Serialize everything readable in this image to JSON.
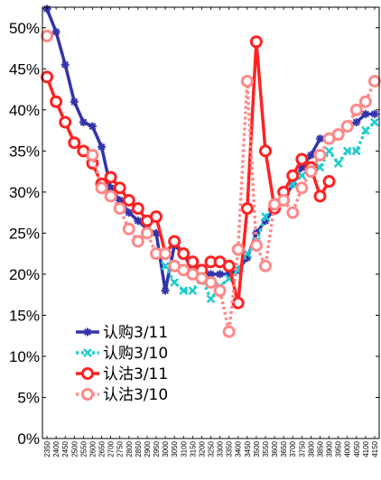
{
  "chart_data": {
    "type": "line",
    "title": "",
    "xlabel": "",
    "ylabel": "",
    "ylim": [
      0,
      0.525
    ],
    "y_ticks": [
      "0%",
      "5%",
      "10%",
      "15%",
      "20%",
      "25%",
      "30%",
      "35%",
      "40%",
      "45%",
      "50%"
    ],
    "legend_position": "lower-left",
    "grid": false,
    "x": [
      "2350",
      "2400",
      "2450",
      "2500",
      "2550",
      "2600",
      "2650",
      "2700",
      "2750",
      "2800",
      "2850",
      "2900",
      "2950",
      "3000",
      "3050",
      "3100",
      "3150",
      "3200",
      "3250",
      "3300",
      "3350",
      "3400",
      "3450",
      "3500",
      "3550",
      "3600",
      "3650",
      "3700",
      "3750",
      "3800",
      "3850",
      "3900",
      "3950",
      "4000",
      "4050",
      "4100",
      "4150"
    ],
    "series": [
      {
        "name": "认购3/11",
        "color": "#3333aa",
        "style": "solid",
        "marker": "star",
        "values": [
          0.523,
          0.495,
          0.455,
          0.41,
          0.385,
          0.38,
          0.355,
          0.305,
          0.29,
          0.275,
          0.265,
          0.255,
          0.25,
          0.18,
          0.235,
          0.225,
          0.205,
          0.2,
          0.2,
          0.2,
          0.2,
          0.205,
          0.22,
          0.25,
          0.265,
          0.28,
          0.29,
          0.31,
          0.33,
          0.345,
          0.365,
          0.365,
          0.37,
          0.38,
          0.385,
          0.395,
          0.395
        ]
      },
      {
        "name": "认购3/10",
        "color": "#22cccc",
        "style": "dotted",
        "marker": "x",
        "values": [
          null,
          null,
          null,
          null,
          null,
          null,
          null,
          null,
          null,
          null,
          null,
          null,
          null,
          0.21,
          0.19,
          0.18,
          0.18,
          0.195,
          0.17,
          0.185,
          0.195,
          0.205,
          0.225,
          0.24,
          0.27,
          0.285,
          0.295,
          0.31,
          0.32,
          0.325,
          0.33,
          0.35,
          0.335,
          0.35,
          0.35,
          0.375,
          0.385
        ]
      },
      {
        "name": "认沽3/11",
        "color": "#ff2222",
        "style": "solid",
        "marker": "circle",
        "values": [
          0.44,
          0.41,
          0.385,
          0.36,
          0.35,
          0.335,
          0.31,
          0.318,
          0.305,
          0.29,
          0.28,
          0.265,
          0.27,
          0.225,
          0.24,
          0.225,
          0.215,
          0.205,
          0.215,
          0.215,
          0.21,
          0.165,
          0.28,
          0.483,
          0.35,
          0.28,
          0.3,
          0.32,
          0.34,
          0.33,
          0.295,
          0.313,
          null,
          null,
          null,
          null,
          null
        ]
      },
      {
        "name": "认沽3/10",
        "color": "#ff8888",
        "style": "dotted",
        "marker": "circle",
        "values": [
          0.49,
          null,
          null,
          null,
          null,
          0.345,
          0.305,
          0.295,
          0.28,
          0.255,
          0.24,
          0.25,
          0.225,
          0.225,
          0.21,
          0.205,
          0.2,
          0.195,
          0.19,
          0.18,
          0.13,
          0.23,
          0.435,
          0.235,
          0.21,
          0.285,
          0.29,
          0.275,
          0.305,
          0.325,
          0.345,
          0.365,
          0.37,
          0.38,
          0.4,
          0.41,
          0.435
        ]
      }
    ]
  }
}
